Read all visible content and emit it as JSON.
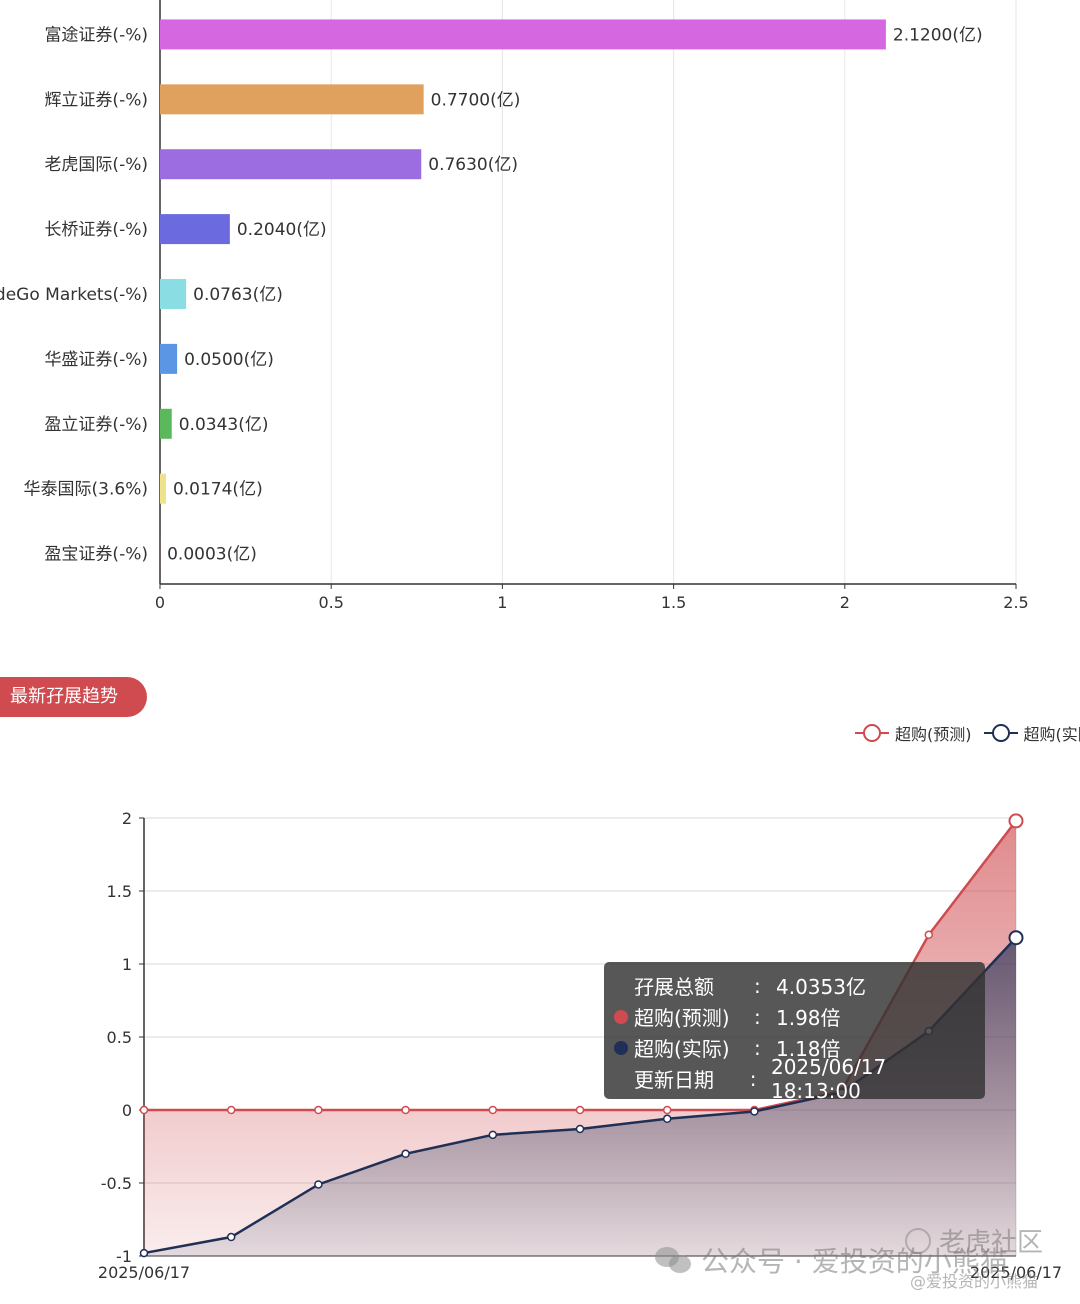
{
  "chart_data": [
    {
      "type": "bar",
      "orientation": "horizontal",
      "categories": [
        "富途证券(-%)",
        "辉立证券(-%)",
        "老虎国际(-%)",
        "长桥证券(-%)",
        "TradeGo Markets(-%)",
        "华盛证券(-%)",
        "盈立证券(-%)",
        "华泰国际(3.6%)",
        "盈宝证券(-%)"
      ],
      "values": [
        2.12,
        0.77,
        0.763,
        0.204,
        0.0763,
        0.05,
        0.0343,
        0.0174,
        0.0003
      ],
      "value_labels": [
        "2.1200(亿)",
        "0.7700(亿)",
        "0.7630(亿)",
        "0.2040(亿)",
        "0.0763(亿)",
        "0.0500(亿)",
        "0.0343(亿)",
        "0.0174(亿)",
        "0.0003(亿)"
      ],
      "colors": [
        "#d567e1",
        "#e0a15e",
        "#9c6de0",
        "#6b6ade",
        "#8adde3",
        "#5a96e3",
        "#5bb85d",
        "#ede38a",
        "#c23531"
      ],
      "xlim": [
        0,
        2.5
      ],
      "xticks": [
        "0",
        "0.5",
        "1",
        "1.5",
        "2",
        "2.5"
      ],
      "grid": true
    },
    {
      "type": "area",
      "x_start_label": "2025/06/17",
      "x_end_label": "2025/06/17",
      "ylim": [
        -1,
        2
      ],
      "yticks": [
        "2",
        "1.5",
        "1",
        "0.5",
        "0",
        "-0.5",
        "-1"
      ],
      "legend_position": "top-right",
      "series": [
        {
          "name": "超购(预测)",
          "color": "#cf4b4f",
          "values": [
            0,
            0,
            0,
            0,
            0,
            0,
            0,
            0,
            0.13,
            1.2,
            1.98
          ]
        },
        {
          "name": "超购(实际)",
          "color": "#1f2f55",
          "values": [
            -0.98,
            -0.87,
            -0.51,
            -0.3,
            -0.17,
            -0.13,
            -0.06,
            -0.01,
            0.12,
            0.54,
            1.18
          ]
        }
      ],
      "grid": true
    }
  ],
  "section": {
    "title": "最新孖展趋势"
  },
  "legend": [
    {
      "label": "超购(预测)",
      "color": "#cf4b4f"
    },
    {
      "label": "超购(实际)",
      "color": "#1f2f55"
    }
  ],
  "tooltip": {
    "rows": [
      {
        "label": "孖展总额",
        "value": "4.0353亿",
        "dot": ""
      },
      {
        "label": "超购(预测)",
        "value": "1.98倍",
        "dot": "#cf4b4f"
      },
      {
        "label": "超购(实际)",
        "value": "1.18倍",
        "dot": "#1f2f55"
      },
      {
        "label": "更新日期",
        "value": "2025/06/17 18:13:00",
        "dot": ""
      }
    ],
    "separator": ":"
  },
  "watermark": {
    "wechat_text": "公众号 · 爱投资的小熊猫",
    "tiger_text": "老虎社区",
    "handle_text": "@爱投资的小熊猫"
  }
}
